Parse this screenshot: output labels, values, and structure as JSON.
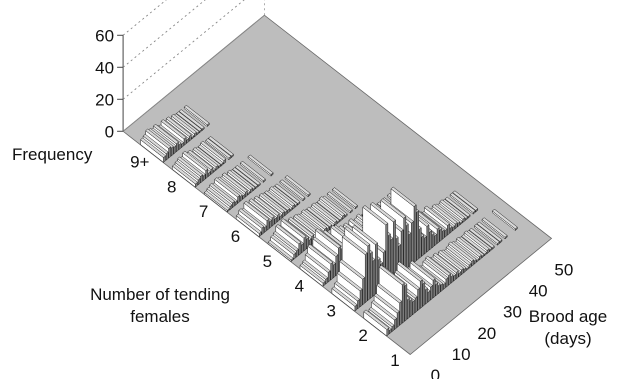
{
  "chart_data": {
    "type": "bar3d",
    "title": "",
    "zlabel": "Frequency",
    "xlabel": [
      "Number of tending",
      "females"
    ],
    "ylabel": [
      "Brood age",
      "(days)"
    ],
    "z_ticks": [
      "0",
      "20",
      "40",
      "60"
    ],
    "z_range": [
      0,
      60
    ],
    "x_ticks": [
      "1",
      "2",
      "3",
      "4",
      "5",
      "6",
      "7",
      "8",
      "9+"
    ],
    "y_ticks": [
      "0",
      "10",
      "20",
      "30",
      "40",
      "50"
    ],
    "y_range": [
      0,
      55
    ],
    "rows": [
      {
        "group": "1",
        "values": [
          0,
          0,
          0,
          0,
          0,
          0,
          0,
          0,
          0,
          0,
          0,
          0,
          0,
          0,
          0,
          0,
          0,
          0,
          0,
          0,
          0,
          0,
          0,
          0,
          0,
          0,
          0,
          0,
          0,
          0,
          0,
          0,
          0,
          0,
          0,
          0,
          0,
          0,
          0,
          0,
          0,
          0,
          0,
          0,
          0,
          0,
          0,
          0,
          0,
          0,
          0,
          0,
          0,
          0,
          0
        ]
      },
      {
        "group": "2",
        "values": [
          4,
          2,
          3,
          6,
          9,
          14,
          24,
          22,
          12,
          10,
          8,
          9,
          13,
          17,
          14,
          9,
          6,
          8,
          11,
          7,
          5,
          4,
          3,
          5,
          6,
          4,
          3,
          4,
          2,
          3,
          2,
          1,
          2,
          3,
          2,
          1,
          2,
          1,
          1,
          2,
          1,
          1,
          0,
          1,
          1,
          0,
          1,
          0,
          0,
          0,
          1,
          0,
          0,
          0,
          0
        ]
      },
      {
        "group": "3",
        "values": [
          3,
          5,
          10,
          16,
          30,
          34,
          28,
          22,
          31,
          20,
          16,
          22,
          38,
          30,
          26,
          36,
          24,
          18,
          26,
          33,
          27,
          20,
          26,
          35,
          30,
          18,
          12,
          10,
          16,
          11,
          8,
          6,
          9,
          7,
          5,
          4,
          6,
          3,
          2,
          3,
          2,
          1,
          2,
          1,
          1,
          0,
          1,
          1,
          0,
          0,
          0,
          0,
          0,
          0,
          0
        ]
      },
      {
        "group": "4",
        "values": [
          2,
          3,
          6,
          10,
          8,
          12,
          16,
          14,
          8,
          11,
          7,
          6,
          10,
          9,
          5,
          6,
          4,
          5,
          3,
          5,
          2,
          3,
          4,
          2,
          2,
          1,
          2,
          1,
          2,
          1,
          1,
          0,
          1,
          0,
          1,
          0,
          0,
          0,
          0,
          0,
          0,
          0,
          0,
          0,
          0,
          0,
          0,
          0,
          0,
          0,
          0,
          0,
          0,
          0,
          0
        ]
      },
      {
        "group": "5",
        "values": [
          1,
          3,
          4,
          7,
          5,
          8,
          6,
          4,
          5,
          3,
          4,
          3,
          2,
          3,
          2,
          2,
          1,
          2,
          1,
          1,
          2,
          1,
          0,
          1,
          0,
          1,
          0,
          0,
          0,
          0,
          0,
          0,
          0,
          0,
          0,
          0,
          0,
          0,
          0,
          0,
          0,
          0,
          0,
          0,
          0,
          0,
          0,
          0,
          0,
          0,
          0,
          0,
          0,
          0,
          0
        ]
      },
      {
        "group": "6",
        "values": [
          2,
          4,
          3,
          6,
          4,
          5,
          3,
          4,
          2,
          3,
          2,
          2,
          1,
          2,
          1,
          1,
          0,
          1,
          0,
          1,
          0,
          0,
          0,
          0,
          0,
          0,
          0,
          0,
          0,
          0,
          0,
          0,
          0,
          0,
          0,
          0,
          0,
          0,
          0,
          0,
          0,
          0,
          0,
          0,
          0,
          0,
          0,
          0,
          0,
          0,
          0,
          0,
          0,
          0,
          0
        ]
      },
      {
        "group": "7",
        "values": [
          1,
          2,
          3,
          2,
          4,
          3,
          2,
          3,
          1,
          2,
          1,
          1,
          1,
          0,
          1,
          0,
          0,
          1,
          0,
          0,
          0,
          0,
          0,
          0,
          0,
          0,
          0,
          0,
          0,
          0,
          0,
          0,
          0,
          0,
          0,
          0,
          0,
          0,
          0,
          0,
          0,
          0,
          0,
          0,
          0,
          0,
          0,
          0,
          0,
          0,
          0,
          0,
          0,
          0,
          0
        ]
      },
      {
        "group": "8",
        "values": [
          2,
          3,
          4,
          3,
          5,
          2,
          3,
          1,
          2,
          1,
          1,
          2,
          0,
          1,
          1,
          0,
          0,
          0,
          0,
          0,
          0,
          0,
          0,
          0,
          0,
          0,
          0,
          0,
          0,
          0,
          0,
          0,
          0,
          0,
          0,
          0,
          0,
          0,
          0,
          0,
          0,
          0,
          0,
          0,
          0,
          0,
          0,
          0,
          0,
          0,
          0,
          0,
          0,
          0,
          0
        ]
      },
      {
        "group": "9+",
        "values": [
          3,
          4,
          6,
          5,
          4,
          5,
          3,
          2,
          4,
          2,
          3,
          1,
          2,
          1,
          1,
          1,
          0,
          1,
          0,
          0,
          0,
          0,
          0,
          0,
          0,
          0,
          0,
          0,
          0,
          0,
          0,
          0,
          0,
          0,
          0,
          0,
          0,
          0,
          0,
          0,
          0,
          0,
          0,
          0,
          0,
          0,
          0,
          0,
          0,
          0,
          0,
          0,
          0,
          0,
          0
        ]
      }
    ]
  }
}
